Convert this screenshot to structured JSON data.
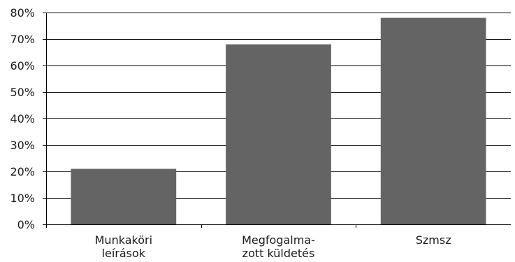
{
  "chart_data": {
    "type": "bar",
    "title": "",
    "xlabel": "",
    "ylabel": "",
    "categories": [
      [
        "Munkaköri",
        "leírások"
      ],
      [
        "Megfogalma-",
        "zott küldetés"
      ],
      [
        "Szmsz"
      ]
    ],
    "values": [
      21,
      68,
      78
    ],
    "ylim": [
      0,
      80
    ],
    "ytick_step": 10,
    "ytick_labels": [
      "0%",
      "10%",
      "20%",
      "30%",
      "40%",
      "50%",
      "60%",
      "70%",
      "80%"
    ],
    "grid": true,
    "legend": "none",
    "colors": {
      "bar": "#646464",
      "grid": "#000000",
      "text": "#1a1a1a"
    }
  }
}
